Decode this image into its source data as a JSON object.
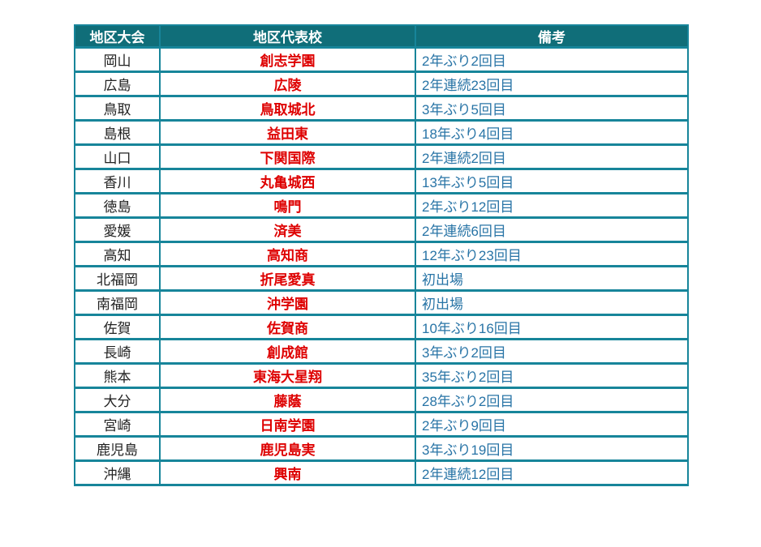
{
  "colors": {
    "header_bg": "#106E79",
    "border": "#17859A",
    "school_text": "#DE0000",
    "note_text": "#2874A6",
    "region_text": "#222222",
    "header_text": "#FFFFFF"
  },
  "table": {
    "headers": [
      "地区大会",
      "地区代表校",
      "備考"
    ],
    "rows": [
      {
        "region": "岡山",
        "school": "創志学園",
        "note": "2年ぶり2回目"
      },
      {
        "region": "広島",
        "school": "広陵",
        "note": "2年連続23回目"
      },
      {
        "region": "鳥取",
        "school": "鳥取城北",
        "note": "3年ぶり5回目"
      },
      {
        "region": "島根",
        "school": "益田東",
        "note": "18年ぶり4回目"
      },
      {
        "region": "山口",
        "school": "下関国際",
        "note": "2年連続2回目"
      },
      {
        "region": "香川",
        "school": "丸亀城西",
        "note": "13年ぶり5回目"
      },
      {
        "region": "徳島",
        "school": "鳴門",
        "note": "2年ぶり12回目"
      },
      {
        "region": "愛媛",
        "school": "済美",
        "note": "2年連続6回目"
      },
      {
        "region": "高知",
        "school": "高知商",
        "note": "12年ぶり23回目"
      },
      {
        "region": "北福岡",
        "school": "折尾愛真",
        "note": "初出場"
      },
      {
        "region": "南福岡",
        "school": "沖学園",
        "note": "初出場"
      },
      {
        "region": "佐賀",
        "school": "佐賀商",
        "note": "10年ぶり16回目"
      },
      {
        "region": "長崎",
        "school": "創成館",
        "note": "3年ぶり2回目"
      },
      {
        "region": "熊本",
        "school": "東海大星翔",
        "note": "35年ぶり2回目"
      },
      {
        "region": "大分",
        "school": "藤蔭",
        "note": "28年ぶり2回目"
      },
      {
        "region": "宮崎",
        "school": "日南学園",
        "note": "2年ぶり9回目"
      },
      {
        "region": "鹿児島",
        "school": "鹿児島実",
        "note": "3年ぶり19回目"
      },
      {
        "region": "沖縄",
        "school": "興南",
        "note": "2年連続12回目"
      }
    ]
  }
}
